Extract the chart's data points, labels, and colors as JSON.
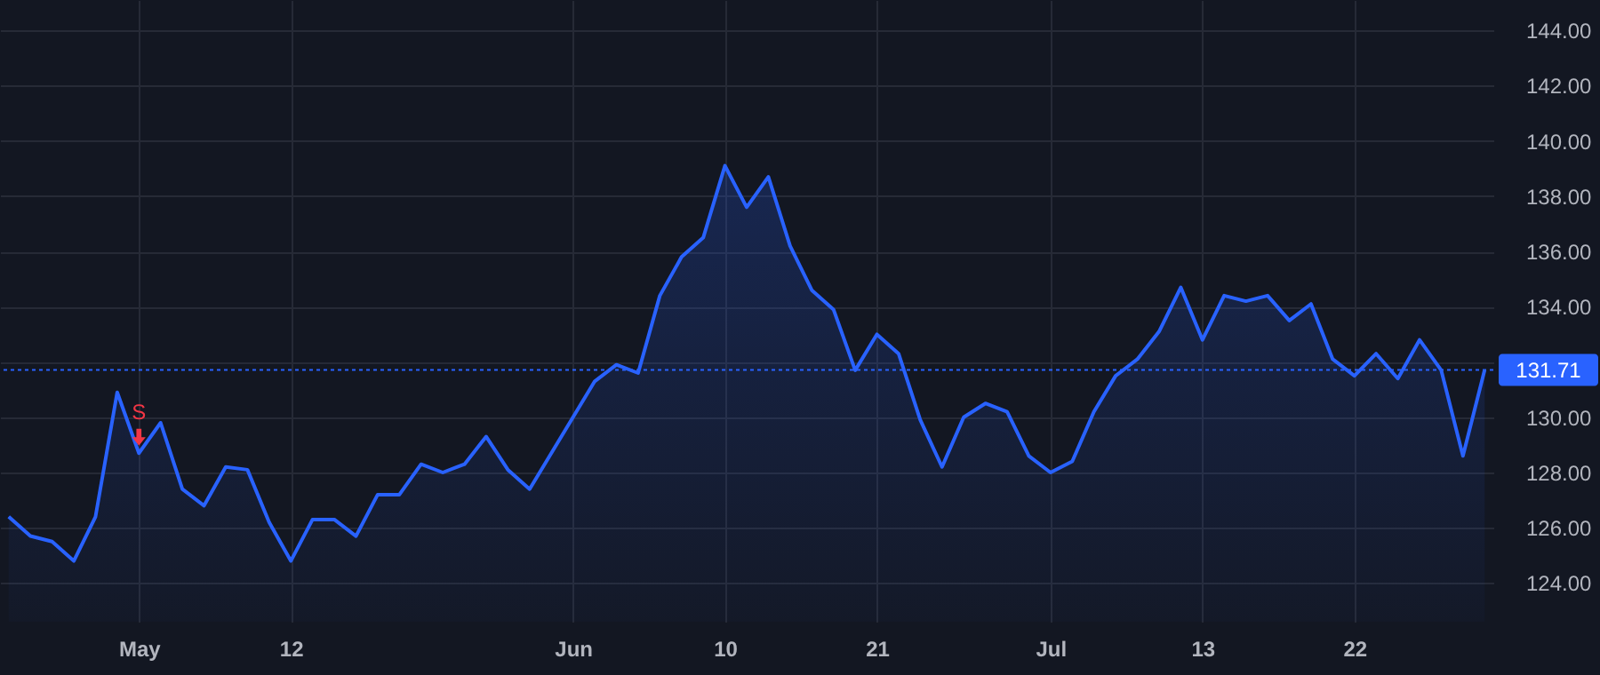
{
  "chart_data": {
    "type": "area",
    "categories": [
      null,
      null,
      null,
      null,
      null,
      null,
      "May",
      null,
      null,
      null,
      null,
      null,
      null,
      "12",
      null,
      null,
      null,
      null,
      null,
      null,
      null,
      null,
      null,
      null,
      null,
      null,
      "Jun",
      null,
      null,
      null,
      null,
      null,
      null,
      "10",
      null,
      null,
      null,
      null,
      null,
      null,
      "21",
      null,
      null,
      null,
      null,
      null,
      null,
      null,
      "Jul",
      null,
      null,
      null,
      null,
      null,
      null,
      "13",
      null,
      null,
      null,
      null,
      null,
      null,
      "22",
      null,
      null,
      null,
      null,
      null,
      null
    ],
    "series": [
      {
        "color": "#2962ff",
        "values": [
          126.4,
          125.7,
          125.5,
          124.8,
          126.4,
          130.9,
          128.7,
          129.8,
          127.4,
          126.8,
          128.2,
          128.1,
          126.2,
          124.8,
          126.3,
          126.3,
          125.7,
          127.2,
          127.2,
          128.3,
          128.0,
          128.3,
          129.3,
          128.1,
          127.4,
          128.7,
          130.0,
          131.3,
          131.9,
          131.6,
          134.4,
          135.8,
          136.5,
          139.1,
          137.6,
          138.7,
          136.2,
          134.6,
          133.9,
          131.7,
          133.0,
          132.3,
          129.9,
          128.2,
          130.0,
          130.5,
          130.2,
          128.6,
          128.0,
          128.4,
          130.2,
          131.5,
          132.1,
          133.1,
          134.7,
          132.8,
          134.4,
          134.2,
          134.4,
          133.5,
          134.1,
          132.1,
          131.5,
          132.3,
          131.4,
          132.8,
          131.7,
          128.6,
          131.71
        ]
      }
    ],
    "ylim": [
      122.6,
      145.1
    ],
    "yticks": [
      {
        "value": 124,
        "label": "124.00"
      },
      {
        "value": 126,
        "label": "126.00"
      },
      {
        "value": 128,
        "label": "128.00"
      },
      {
        "value": 130,
        "label": "130.00"
      },
      {
        "value": 132,
        "label": null
      },
      {
        "value": 134,
        "label": "134.00"
      },
      {
        "value": 136,
        "label": "136.00"
      },
      {
        "value": 138,
        "label": "138.00"
      },
      {
        "value": 140,
        "label": "140.00"
      },
      {
        "value": 142,
        "label": "142.00"
      },
      {
        "value": 144,
        "label": "144.00"
      }
    ],
    "ref_lines": [
      {
        "axis": "y",
        "value": 131.71,
        "label": "131.71",
        "color": "#2962ff",
        "line_style": "dotted"
      }
    ],
    "annotations": [
      {
        "text": "S",
        "x": "May",
        "y": 128.7
      }
    ],
    "grid": true,
    "line_style": "solid"
  }
}
